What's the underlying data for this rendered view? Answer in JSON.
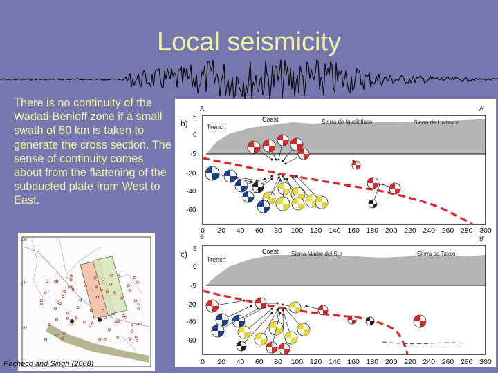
{
  "slide": {
    "title": "Local seismicity",
    "body": "There is no continuity of the Wadati-Benioff zone if a small swath of 50 km is taken to generate the cross section. The sense of continuity comes about from the flattening of the subducted plate from West to East.",
    "credit": "Pacheco and Singh (2008)"
  },
  "section_b": {
    "endpoint_left": "A",
    "endpoint_right": "A'",
    "panel_label": "b)",
    "labels": {
      "coast": "Coast",
      "trench": "Trench",
      "sierra1": "Sierra de Igualatlaco",
      "sierra2": "Sierra de Huitzuco"
    },
    "y_ticks": [
      "5",
      "0",
      "-5",
      "-20",
      "-40",
      "-60"
    ],
    "x_ticks": [
      "0",
      "20",
      "40",
      "60",
      "80",
      "100",
      "120",
      "140",
      "160",
      "180",
      "200",
      "220",
      "240",
      "260",
      "280",
      "300"
    ]
  },
  "section_c": {
    "endpoint_left": "B",
    "endpoint_right": "B'",
    "panel_label": "c)",
    "labels": {
      "coast": "Coast",
      "trench": "Trench",
      "sierra1": "Sierra Madre del Sur",
      "sierra2": "Sierra de Taxco"
    },
    "y_ticks": [
      "5",
      "0",
      "-5",
      "-20",
      "-40",
      "-60"
    ],
    "x_ticks": [
      "0",
      "20",
      "40",
      "60",
      "80",
      "100",
      "120",
      "140",
      "160",
      "180",
      "200",
      "220",
      "240",
      "260",
      "280",
      "300"
    ]
  },
  "colors": {
    "background": "#7577ae",
    "text": "#f2f2a6",
    "slab": "#e0262a",
    "topography": "#b5b5b5"
  }
}
